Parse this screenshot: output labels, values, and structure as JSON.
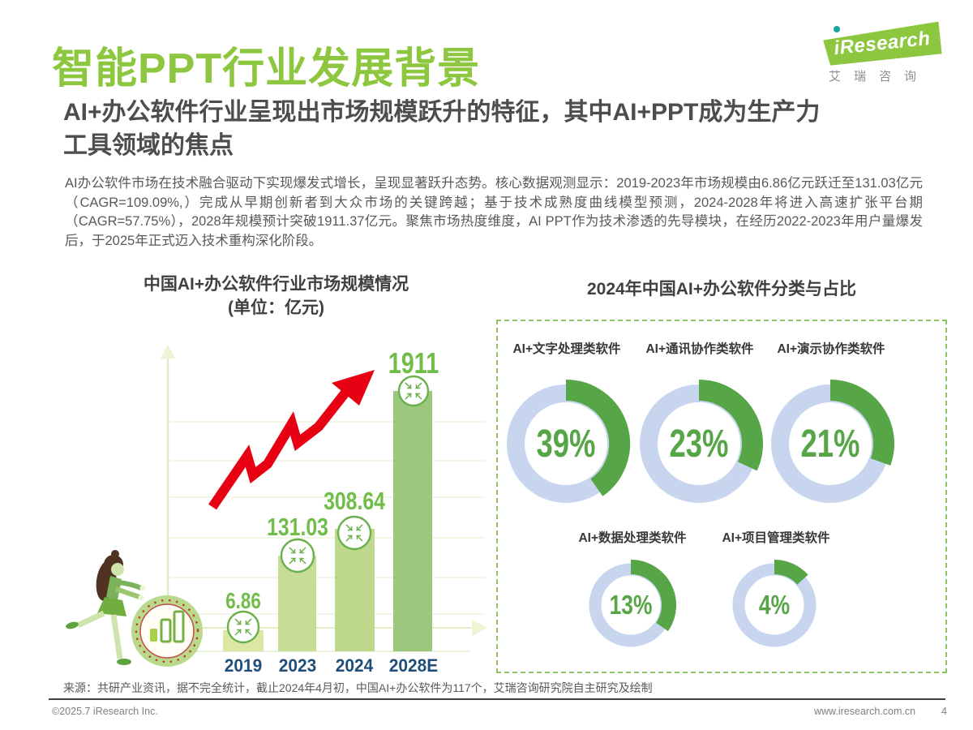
{
  "header": {
    "title": "智能PPT行业发展背景",
    "logo": {
      "brand": "iResearch",
      "brand_cn": "艾瑞咨询",
      "green": "#8dc63f",
      "teal": "#17a3a0"
    }
  },
  "subtitle": {
    "line1": "AI+办公软件行业呈现出市场规模跃升的特征，其中AI+PPT成为生产力",
    "line2": "工具领域的焦点"
  },
  "paragraph": "AI办公软件市场在技术融合驱动下实现爆发式增长，呈现显著跃升态势。核心数据观测显示：2019-2023年市场规模由6.86亿元跃迁至131.03亿元（CAGR=109.09%,）完成从早期创新者到大众市场的关键跨越；基于技术成熟度曲线模型预测，2024-2028年将进入高速扩张平台期（CAGR=57.75%），2028年规模预计突破1911.37亿元。聚焦市场热度维度，AI PPT作为技术渗透的先导模块，在经历2022-2023年用户量爆发后，于2025年正式迈入技术重构深化阶段。",
  "chart_data": [
    {
      "type": "bar",
      "title": "中国AI+办公软件行业市场规模情况",
      "unit_label": "(单位：亿元)",
      "categories": [
        "2019",
        "2023",
        "2024",
        "2028E"
      ],
      "values": [
        6.86,
        131.03,
        308.64,
        1911.37
      ],
      "value_labels": [
        "6.86",
        "131.03",
        "308.64",
        "1911"
      ],
      "ylabel": "亿元",
      "grid": "on",
      "bar_colors": [
        "#dbe7a3",
        "#c6dd95",
        "#bed88c",
        "#9cc87e"
      ],
      "label_color": "#70bd4a",
      "year_color": "#1f4e79",
      "trend_arrow_color": "#e60012"
    },
    {
      "type": "pie",
      "title": "2024年中国AI+办公软件分类与占比",
      "items": [
        {
          "label": "AI+文字处理类软件",
          "value": 39,
          "pct": "39%",
          "arc_deg": 145,
          "size": "large"
        },
        {
          "label": "AI+通讯协作类软件",
          "value": 23,
          "pct": "23%",
          "arc_deg": 115,
          "size": "large"
        },
        {
          "label": "AI+演示协作类软件",
          "value": 21,
          "pct": "21%",
          "arc_deg": 110,
          "size": "large"
        },
        {
          "label": "AI+数据处理类软件",
          "value": 13,
          "pct": "13%",
          "arc_deg": 125,
          "size": "small"
        },
        {
          "label": "AI+项目管理类软件",
          "value": 4,
          "pct": "4%",
          "arc_deg": 48,
          "size": "small"
        }
      ],
      "ring_color": "#c7d6ee",
      "arc_color": "#56a546",
      "pct_color": "#56a546",
      "legend_position": "none"
    }
  ],
  "source": "来源：共研产业资讯，据不完全统计，截止2024年4月初，中国AI+办公软件为117个，艾瑞咨询研究院自主研究及绘制",
  "footer": {
    "copyright": "©2025.7 iResearch Inc.",
    "website": "www.iresearch.com.cn",
    "page": "4"
  }
}
